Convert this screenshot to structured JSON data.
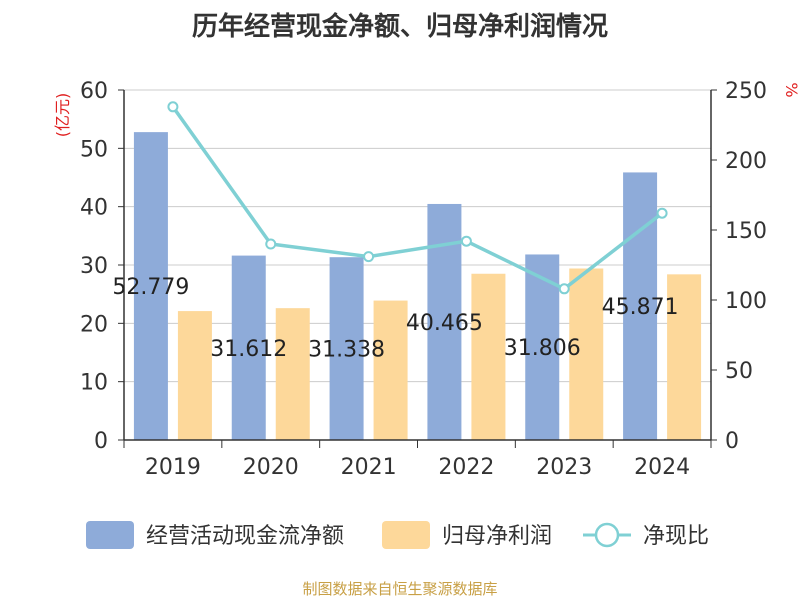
{
  "title": "历年经营现金净额、归母净利润情况",
  "source": "制图数据来自恒生聚源数据库",
  "chart_data": {
    "type": "bar",
    "categories": [
      "2019",
      "2020",
      "2021",
      "2022",
      "2023",
      "2024"
    ],
    "y_left": {
      "unit_label": "(亿元)",
      "min": 0,
      "max": 60,
      "ticks": [
        0,
        10,
        20,
        30,
        40,
        50,
        60
      ]
    },
    "y_right": {
      "unit_label": "%",
      "min": 0,
      "max": 250,
      "ticks": [
        0,
        50,
        100,
        150,
        200,
        250
      ]
    },
    "grid": true,
    "legend_position": "bottom",
    "series": [
      {
        "name": "经营活动现金流净额",
        "type": "bar",
        "axis": "left",
        "color": "#8eabd9",
        "values": [
          52.779,
          31.612,
          31.338,
          40.465,
          31.806,
          45.871
        ],
        "labels": [
          "52.779",
          "31.612",
          "31.338",
          "40.465",
          "31.806",
          "45.871"
        ]
      },
      {
        "name": "归母净利润",
        "type": "bar",
        "axis": "left",
        "color": "#fdd89a",
        "values": [
          22.1,
          22.6,
          23.9,
          28.5,
          29.4,
          28.4
        ]
      },
      {
        "name": "净现比",
        "type": "line",
        "axis": "right",
        "color": "#7fd0d4",
        "values": [
          238,
          140,
          131,
          142,
          108,
          162
        ]
      }
    ]
  }
}
